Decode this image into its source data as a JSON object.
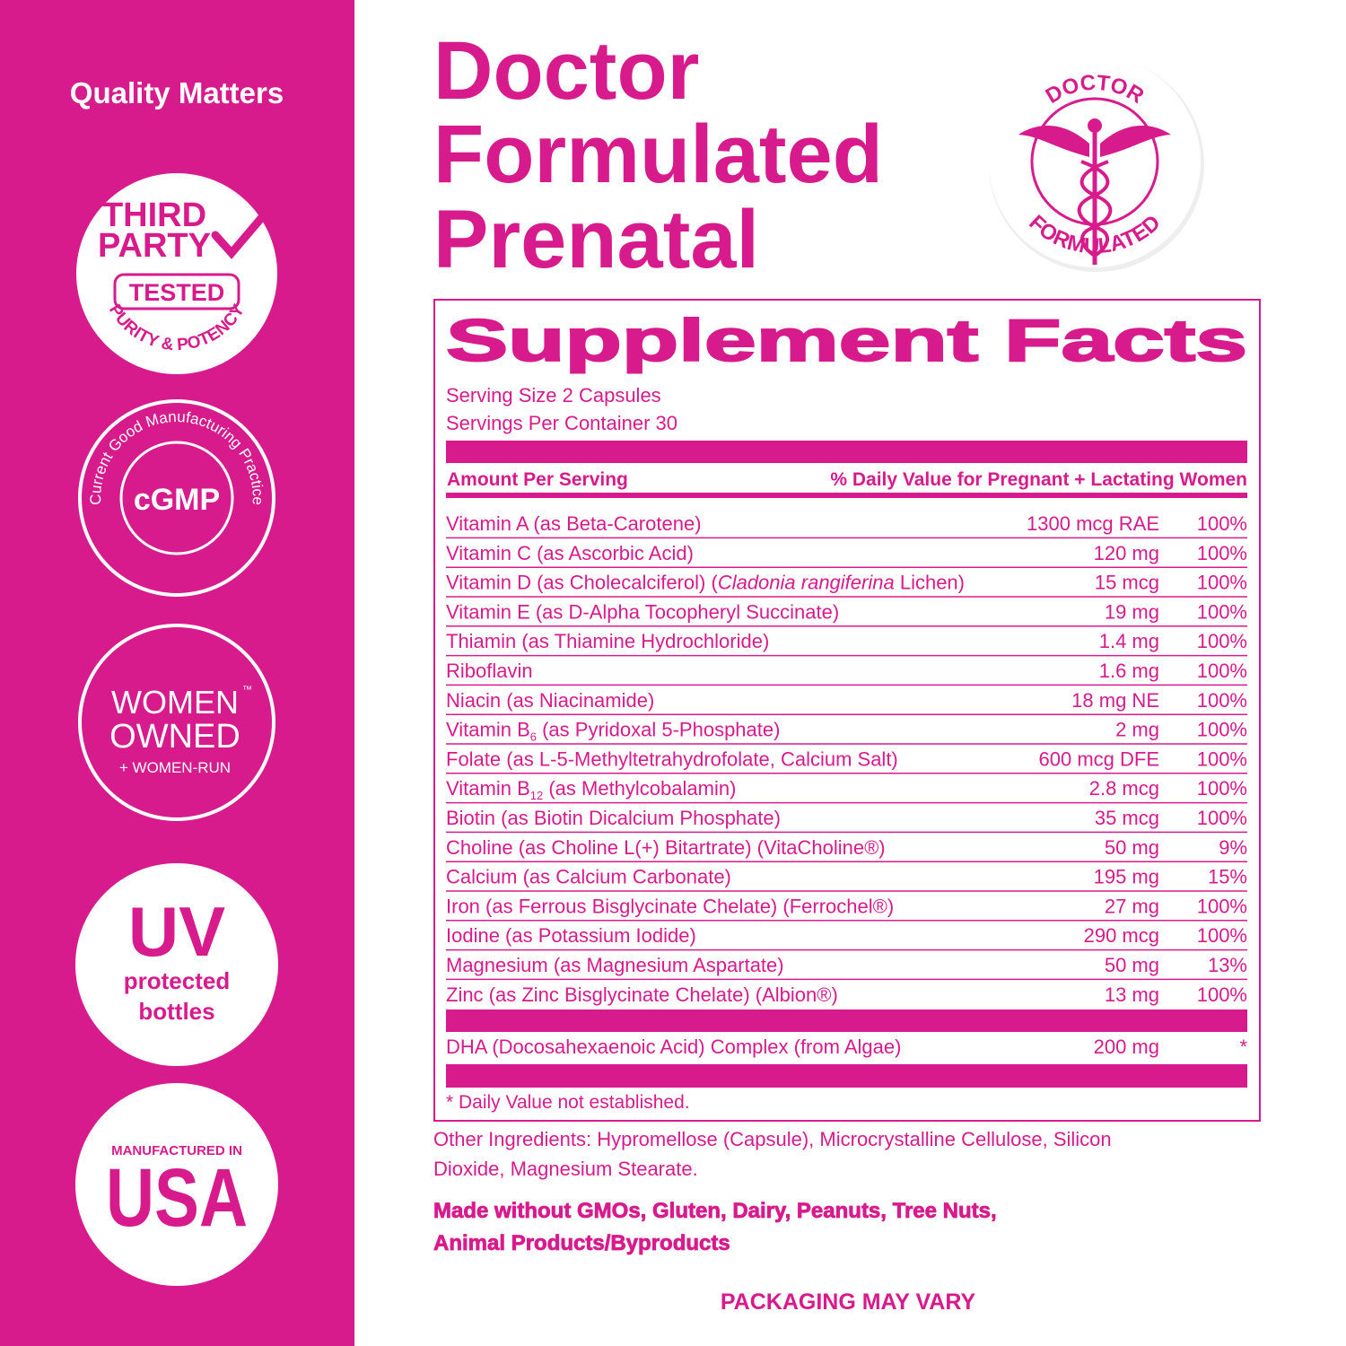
{
  "sidebar": {
    "title": "Quality Matters",
    "third_party": {
      "line1": "THIRD",
      "line2": "PARTY",
      "tested": "TESTED",
      "arc": "PURITY & POTENCY"
    },
    "cgmp": {
      "arc": "Current Good Manufacturing Practice",
      "label": "cGMP"
    },
    "women": {
      "line1": "WOMEN",
      "tm": "™",
      "line2": "OWNED",
      "line3": "+ WOMEN-RUN"
    },
    "uv": {
      "line1": "UV",
      "line2": "protected",
      "line3": "bottles"
    },
    "usa": {
      "line1": "MANUFACTURED IN",
      "line2": "USA"
    }
  },
  "header": {
    "title_lines": [
      "Doctor",
      "Formulated",
      "Prenatal"
    ],
    "seal": {
      "top": "DOCTOR",
      "bottom": "FORMULATED"
    }
  },
  "facts": {
    "title": "Supplement Facts",
    "serving_size": "Serving Size 2 Capsules",
    "servings_per_container": "Servings Per Container 30",
    "col_amount": "Amount Per Serving",
    "col_dv": "% Daily Value for Pregnant + Lactating Women",
    "rows": [
      {
        "name": [
          "Vitamin A (as Beta-Carotene)"
        ],
        "amount": "1300 mcg RAE",
        "dv": "100%"
      },
      {
        "name": [
          "Vitamin C (as Ascorbic Acid)"
        ],
        "amount": "120 mg",
        "dv": "100%"
      },
      {
        "name": [
          "Vitamin D (as Cholecalciferol) (",
          {
            "text": "Cladonia rangiferina",
            "style": "italic"
          },
          " Lichen)"
        ],
        "amount": "15 mcg",
        "dv": "100%"
      },
      {
        "name": [
          "Vitamin E (as D-Alpha Tocopheryl Succinate)"
        ],
        "amount": "19 mg",
        "dv": "100%"
      },
      {
        "name": [
          "Thiamin (as Thiamine Hydrochloride)"
        ],
        "amount": "1.4 mg",
        "dv": "100%"
      },
      {
        "name": [
          "Riboflavin"
        ],
        "amount": "1.6 mg",
        "dv": "100%"
      },
      {
        "name": [
          "Niacin (as Niacinamide)"
        ],
        "amount": "18 mg NE",
        "dv": "100%"
      },
      {
        "name": [
          "Vitamin B",
          {
            "text": "6",
            "style": "sub"
          },
          " (as Pyridoxal 5-Phosphate)"
        ],
        "amount": "2 mg",
        "dv": "100%"
      },
      {
        "name": [
          "Folate (as L-5-Methyltetrahydrofolate, Calcium Salt)"
        ],
        "amount": "600 mcg DFE",
        "dv": "100%"
      },
      {
        "name": [
          "Vitamin B",
          {
            "text": "12",
            "style": "sub"
          },
          " (as Methylcobalamin)"
        ],
        "amount": "2.8 mcg",
        "dv": "100%"
      },
      {
        "name": [
          "Biotin (as Biotin Dicalcium Phosphate)"
        ],
        "amount": "35 mcg",
        "dv": "100%"
      },
      {
        "name": [
          "Choline (as Choline L(+) Bitartrate) (VitaCholine®)"
        ],
        "amount": "50 mg",
        "dv": "9%"
      },
      {
        "name": [
          "Calcium (as Calcium Carbonate)"
        ],
        "amount": "195 mg",
        "dv": "15%"
      },
      {
        "name": [
          "Iron (as Ferrous Bisglycinate Chelate) (Ferrochel®)"
        ],
        "amount": "27 mg",
        "dv": "100%"
      },
      {
        "name": [
          "Iodine (as Potassium Iodide)"
        ],
        "amount": "290 mcg",
        "dv": "100%"
      },
      {
        "name": [
          "Magnesium (as Magnesium Aspartate)"
        ],
        "amount": "50 mg",
        "dv": "13%"
      },
      {
        "name": [
          "Zinc (as Zinc Bisglycinate Chelate) (Albion®)"
        ],
        "amount": "13 mg",
        "dv": "100%"
      }
    ],
    "dha": {
      "name": [
        "DHA (Docosahexaenoic Acid) Complex (from Algae)"
      ],
      "amount": "200 mg",
      "dv": "*"
    },
    "footnote": "* Daily Value not established."
  },
  "other_ingredients": [
    "Other Ingredients: Hypromellose (Capsule), Microcrystalline Cellulose, Silicon",
    "Dioxide, Magnesium Stearate."
  ],
  "made_without": [
    "Made without GMOs, Gluten, Dairy, Peanuts, Tree Nuts,",
    "Animal Products/Byproducts"
  ],
  "packaging": "PACKAGING MAY VARY"
}
